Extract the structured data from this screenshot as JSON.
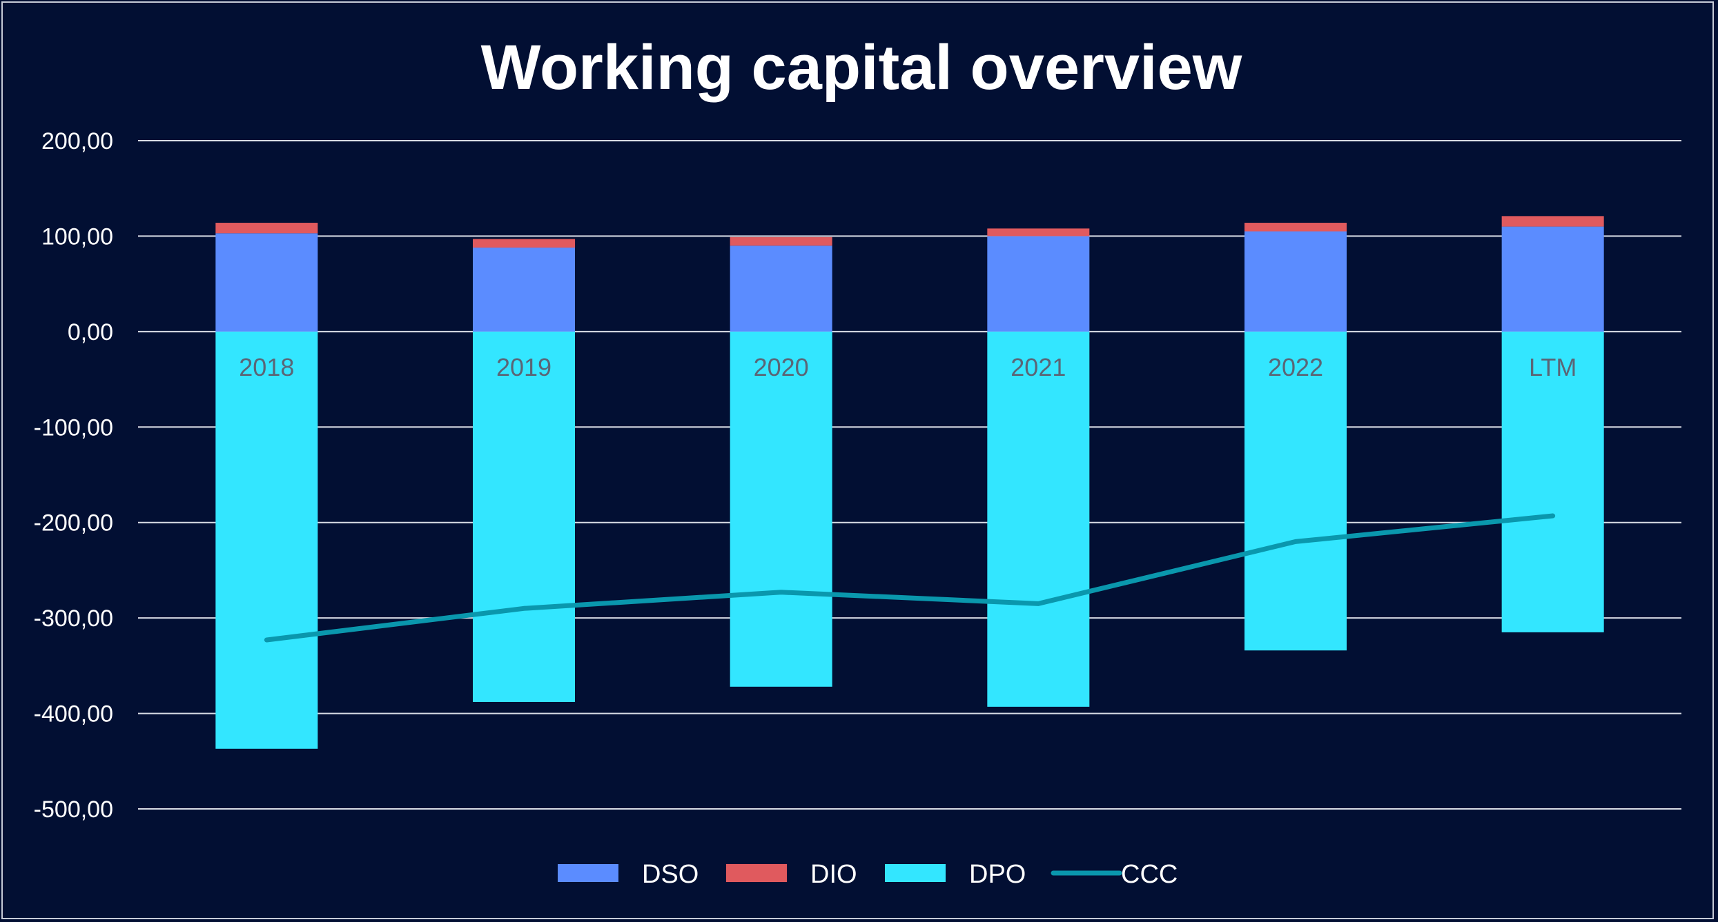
{
  "chart_data": {
    "type": "bar",
    "title": "Working capital overview",
    "categories": [
      "2018",
      "2019",
      "2020",
      "2021",
      "2022",
      "LTM"
    ],
    "series": [
      {
        "name": "DSO",
        "kind": "bar",
        "color": "#5b8cff",
        "values": [
          103,
          88,
          90,
          100,
          105,
          110
        ]
      },
      {
        "name": "DIO",
        "kind": "bar",
        "color": "#e05a5e",
        "values": [
          11,
          9,
          9,
          8,
          9,
          11
        ]
      },
      {
        "name": "DPO",
        "kind": "bar",
        "color": "#33e6ff",
        "values": [
          -437,
          -388,
          -372,
          -393,
          -334,
          -315
        ]
      },
      {
        "name": "CCC",
        "kind": "line",
        "color": "#0a97ad",
        "values": [
          -323,
          -290,
          -273,
          -285,
          -220,
          -193
        ]
      }
    ],
    "ylim": [
      -500,
      200
    ],
    "yticks": [
      200,
      100,
      0,
      -100,
      -200,
      -300,
      -400,
      -500
    ],
    "ytick_labels": [
      "200,00",
      "100,00",
      "0,00",
      "-100,00",
      "-200,00",
      "-300,00",
      "-400,00",
      "-500,00"
    ],
    "xlabel": "",
    "ylabel": "",
    "grid": true,
    "legend_position": "bottom"
  }
}
